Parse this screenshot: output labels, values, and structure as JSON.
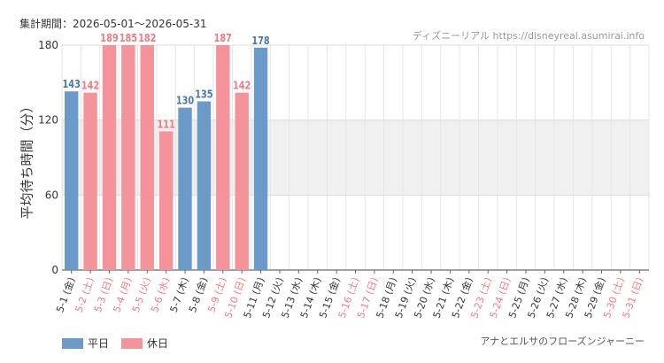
{
  "header": {
    "period": "集計期間：2026-05-01～2026-05-31",
    "source": "ディズニーリアル https://disneyreal.asumirai.info"
  },
  "attraction": "アナとエルサのフローズンジャーニー",
  "legend": {
    "weekday": "平日",
    "holiday": "休日"
  },
  "colors": {
    "weekday": "#6b9ac9",
    "holiday": "#f4939a",
    "weekday_label": "#4a78a8",
    "holiday_label": "#f17a82",
    "band": "#f0f0f0",
    "axis_text": "#333333"
  },
  "chart_data": {
    "type": "bar",
    "ylabel": "平均待ち時間（分）",
    "ylim": [
      0,
      180
    ],
    "yticks": [
      0,
      60,
      120,
      180
    ],
    "categories": [
      "5-1 (金)",
      "5-2 (土)",
      "5-3 (日)",
      "5-4 (月)",
      "5-5 (火)",
      "5-6 (水)",
      "5-7 (木)",
      "5-8 (金)",
      "5-9 (土)",
      "5-10 (日)",
      "5-11 (月)",
      "5-12 (火)",
      "5-13 (水)",
      "5-14 (木)",
      "5-15 (金)",
      "5-16 (土)",
      "5-17 (日)",
      "5-18 (月)",
      "5-19 (火)",
      "5-20 (水)",
      "5-21 (木)",
      "5-22 (金)",
      "5-23 (土)",
      "5-24 (日)",
      "5-25 (月)",
      "5-26 (火)",
      "5-27 (水)",
      "5-28 (木)",
      "5-29 (金)",
      "5-30 (土)",
      "5-31 (日)"
    ],
    "day_types": [
      "weekday",
      "holiday",
      "holiday",
      "holiday",
      "holiday",
      "holiday",
      "weekday",
      "weekday",
      "holiday",
      "holiday",
      "weekday",
      "weekday",
      "weekday",
      "weekday",
      "weekday",
      "holiday",
      "holiday",
      "weekday",
      "weekday",
      "weekday",
      "weekday",
      "weekday",
      "holiday",
      "holiday",
      "weekday",
      "weekday",
      "weekday",
      "weekday",
      "weekday",
      "holiday",
      "holiday"
    ],
    "values": [
      143,
      142,
      189,
      185,
      182,
      111,
      130,
      135,
      187,
      142,
      178,
      null,
      null,
      null,
      null,
      null,
      null,
      null,
      null,
      null,
      null,
      null,
      null,
      null,
      null,
      null,
      null,
      null,
      null,
      null,
      null
    ],
    "value_labels": [
      "143",
      "142",
      "189",
      "185",
      "182",
      "111",
      "130",
      "135",
      "187",
      "142",
      "178",
      "",
      "",
      "",
      "",
      "",
      "",
      "",
      "",
      "",
      "",
      "",
      "",
      "",
      "",
      "",
      "",
      "",
      "",
      "",
      ""
    ],
    "legend_position": "bottom-left",
    "grid": true
  }
}
